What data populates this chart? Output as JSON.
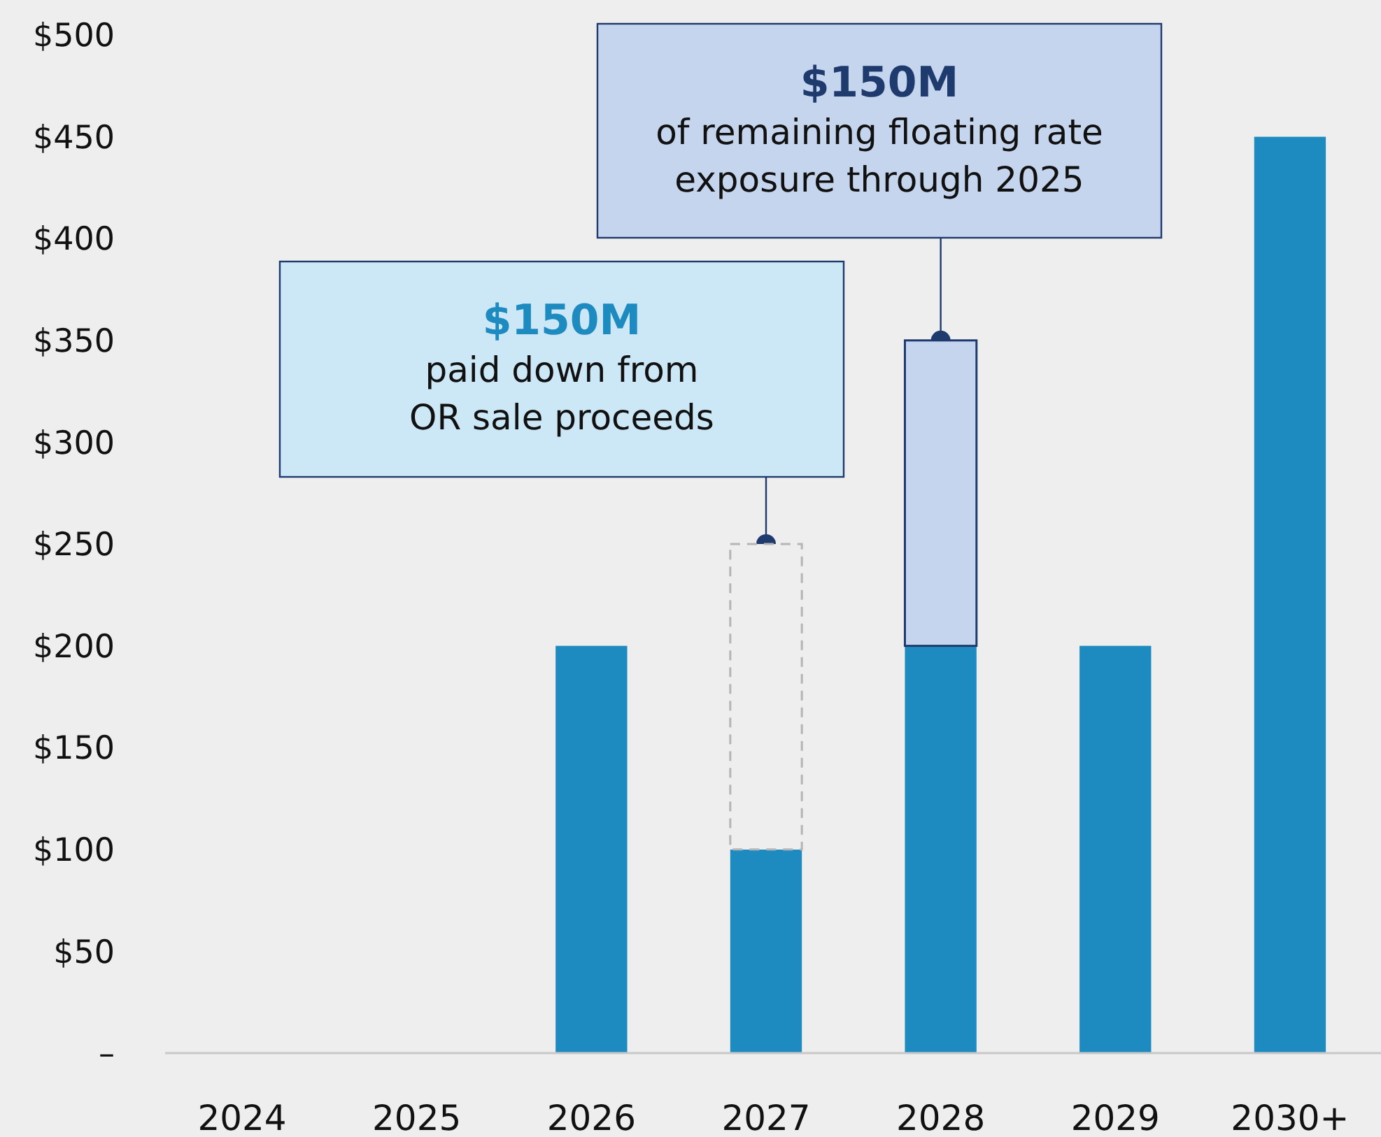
{
  "chart_data": {
    "type": "bar",
    "stacked": true,
    "grid": false,
    "categories": [
      "2024",
      "2025",
      "2026",
      "2027",
      "2028",
      "2029",
      "2030+"
    ],
    "series": [
      {
        "color": "#1e8bc0",
        "values": [
          0,
          0,
          200,
          100,
          200,
          200,
          450
        ]
      },
      {
        "color": "#eeeeee",
        "line_style": "dashed",
        "values": [
          null,
          null,
          null,
          150,
          null,
          null,
          null
        ]
      },
      {
        "color": "#c5d5ee",
        "values": [
          null,
          null,
          null,
          null,
          150,
          null,
          null
        ]
      }
    ],
    "ylim": [
      0,
      500
    ],
    "yticks": [
      {
        "value": 0,
        "label": "–"
      },
      {
        "value": 50,
        "label": "$50"
      },
      {
        "value": 100,
        "label": "$100"
      },
      {
        "value": 150,
        "label": "$150"
      },
      {
        "value": 200,
        "label": "$200"
      },
      {
        "value": 250,
        "label": "$250"
      },
      {
        "value": 300,
        "label": "$300"
      },
      {
        "value": 350,
        "label": "$350"
      },
      {
        "value": 400,
        "label": "$400"
      },
      {
        "value": 450,
        "label": "$450"
      },
      {
        "value": 500,
        "label": "$500"
      }
    ],
    "annotations": [
      {
        "text": "$150M\npaid down from\nOR sale proceeds",
        "x": "2027",
        "y": 250
      },
      {
        "text": "$150M\nof remaining floating rate\nexposure through 2025",
        "x": "2028",
        "y": 350
      }
    ]
  }
}
